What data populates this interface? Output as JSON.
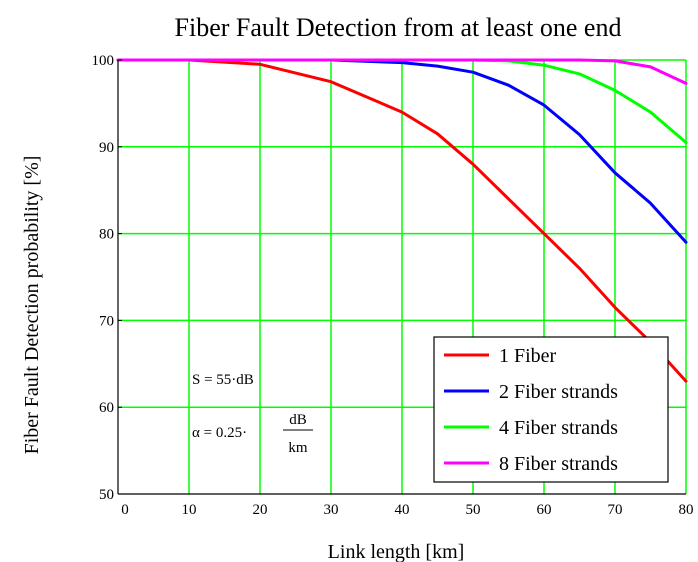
{
  "chart_data": {
    "type": "line",
    "title": "Fiber Fault Detection from at least one end",
    "xlabel": "Link length [km]",
    "ylabel": "Fiber Fault Detection probability [%]",
    "xlim": [
      0,
      80
    ],
    "ylim": [
      50,
      100
    ],
    "x_ticks": [
      0,
      10,
      20,
      30,
      40,
      50,
      60,
      70,
      80
    ],
    "y_ticks": [
      50,
      60,
      70,
      80,
      90,
      100
    ],
    "grid": true,
    "legend_position": "bottom-right",
    "x": [
      0,
      10,
      20,
      30,
      40,
      45,
      50,
      55,
      60,
      65,
      70,
      75,
      80
    ],
    "series": [
      {
        "name": "1 Fiber",
        "color": "#ff0000",
        "values": [
          100,
          100,
          99.5,
          97.5,
          94,
          91.5,
          88,
          84,
          80,
          76,
          71.5,
          67.5,
          63
        ]
      },
      {
        "name": "2 Fiber strands",
        "color": "#0000ff",
        "values": [
          100,
          100,
          100,
          100,
          99.7,
          99.3,
          98.6,
          97.1,
          94.8,
          91.4,
          87,
          83.5,
          79
        ]
      },
      {
        "name": "4 Fiber strands",
        "color": "#00ff00",
        "values": [
          100,
          100,
          100,
          100,
          100,
          100,
          100,
          99.9,
          99.4,
          98.4,
          96.5,
          94,
          90.5
        ]
      },
      {
        "name": "8 Fiber strands",
        "color": "#ff00ff",
        "values": [
          100,
          100,
          100,
          100,
          100,
          100,
          100,
          100,
          100,
          100,
          99.9,
          99.2,
          97.3
        ]
      }
    ],
    "annotations": {
      "s_label": "S = 55·dB",
      "alpha_prefix": "α = 0.25·",
      "alpha_num": "dB",
      "alpha_den": "km"
    }
  },
  "colors": {
    "grid": "#00ff00",
    "axes": "#000000",
    "background": "#ffffff"
  }
}
